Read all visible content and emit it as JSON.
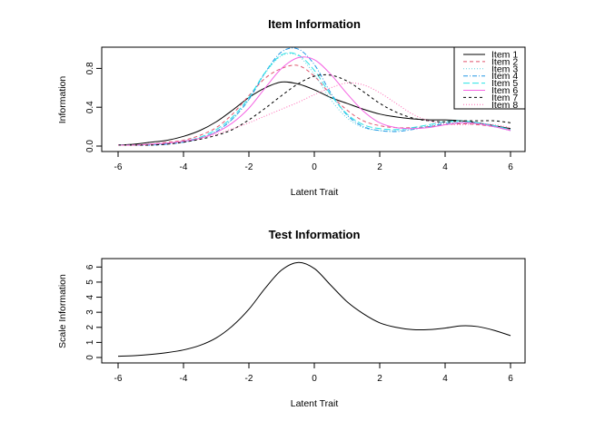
{
  "chart_data": [
    {
      "type": "line",
      "title": "Item Information",
      "xlabel": "Latent Trait",
      "ylabel": "Information",
      "xlim": [
        -6,
        6
      ],
      "ylim": [
        0,
        1.0
      ],
      "xticks": [
        "-6",
        "-4",
        "-2",
        "0",
        "2",
        "4",
        "6"
      ],
      "yticks": [
        "0.0",
        "0.4",
        "0.8"
      ],
      "legend_position": "top-right",
      "x": [
        -6,
        -5.5,
        -5,
        -4.5,
        -4,
        -3.5,
        -3,
        -2.5,
        -2,
        -1.5,
        -1,
        -0.5,
        0,
        0.5,
        1,
        1.5,
        2,
        2.5,
        3,
        3.5,
        4,
        4.5,
        5,
        5.5,
        6
      ],
      "series": [
        {
          "name": "Item 1",
          "color": "#000000",
          "dash": "solid",
          "values": [
            0.01,
            0.02,
            0.04,
            0.06,
            0.1,
            0.16,
            0.25,
            0.37,
            0.5,
            0.6,
            0.66,
            0.64,
            0.58,
            0.5,
            0.44,
            0.38,
            0.33,
            0.3,
            0.28,
            0.27,
            0.27,
            0.26,
            0.24,
            0.21,
            0.18
          ]
        },
        {
          "name": "Item 2",
          "color": "#df536b",
          "dash": "4,3",
          "values": [
            0.01,
            0.01,
            0.02,
            0.04,
            0.06,
            0.11,
            0.19,
            0.33,
            0.52,
            0.7,
            0.8,
            0.83,
            0.72,
            0.53,
            0.37,
            0.26,
            0.21,
            0.19,
            0.19,
            0.2,
            0.22,
            0.23,
            0.22,
            0.2,
            0.17
          ]
        },
        {
          "name": "Item 3",
          "color": "#5fd3e0",
          "dash": "1,2",
          "values": [
            0.01,
            0.01,
            0.01,
            0.02,
            0.04,
            0.08,
            0.15,
            0.28,
            0.48,
            0.75,
            0.93,
            0.93,
            0.74,
            0.48,
            0.29,
            0.19,
            0.16,
            0.16,
            0.18,
            0.21,
            0.24,
            0.25,
            0.24,
            0.21,
            0.17
          ]
        },
        {
          "name": "Item 4",
          "color": "#2297e6",
          "dash": "5,2,1,2",
          "values": [
            0.01,
            0.01,
            0.01,
            0.02,
            0.04,
            0.08,
            0.15,
            0.28,
            0.48,
            0.76,
            0.97,
            1.0,
            0.84,
            0.55,
            0.32,
            0.2,
            0.16,
            0.15,
            0.17,
            0.2,
            0.23,
            0.24,
            0.23,
            0.2,
            0.16
          ]
        },
        {
          "name": "Item 5",
          "color": "#28e2e5",
          "dash": "7,3",
          "values": [
            0.01,
            0.01,
            0.02,
            0.03,
            0.05,
            0.09,
            0.17,
            0.3,
            0.5,
            0.76,
            0.94,
            0.94,
            0.78,
            0.53,
            0.33,
            0.22,
            0.18,
            0.17,
            0.19,
            0.22,
            0.25,
            0.26,
            0.24,
            0.21,
            0.17
          ]
        },
        {
          "name": "Item 6",
          "color": "#f564e3",
          "dash": "solid",
          "values": [
            0.01,
            0.01,
            0.02,
            0.03,
            0.05,
            0.08,
            0.14,
            0.24,
            0.39,
            0.6,
            0.8,
            0.91,
            0.89,
            0.74,
            0.54,
            0.36,
            0.24,
            0.19,
            0.18,
            0.19,
            0.22,
            0.24,
            0.23,
            0.2,
            0.16
          ]
        },
        {
          "name": "Item 7",
          "color": "#000000",
          "dash": "3,3",
          "values": [
            0.01,
            0.01,
            0.01,
            0.02,
            0.04,
            0.07,
            0.11,
            0.17,
            0.27,
            0.39,
            0.52,
            0.64,
            0.72,
            0.73,
            0.67,
            0.56,
            0.44,
            0.35,
            0.29,
            0.26,
            0.25,
            0.26,
            0.26,
            0.26,
            0.24
          ]
        },
        {
          "name": "Item 8",
          "color": "#ff69b4",
          "dash": "1,2",
          "values": [
            0.01,
            0.01,
            0.02,
            0.03,
            0.05,
            0.08,
            0.12,
            0.18,
            0.24,
            0.31,
            0.38,
            0.45,
            0.53,
            0.6,
            0.65,
            0.63,
            0.55,
            0.44,
            0.33,
            0.26,
            0.23,
            0.22,
            0.23,
            0.22,
            0.19
          ]
        }
      ]
    },
    {
      "type": "line",
      "title": "Test Information",
      "xlabel": "Latent Trait",
      "ylabel": "Scale Information",
      "xlim": [
        -6,
        6
      ],
      "ylim": [
        0,
        6.5
      ],
      "xticks": [
        "-6",
        "-4",
        "-2",
        "0",
        "2",
        "4",
        "6"
      ],
      "yticks": [
        "0",
        "1",
        "2",
        "3",
        "4",
        "5",
        "6"
      ],
      "x": [
        -6,
        -5.5,
        -5,
        -4.5,
        -4,
        -3.5,
        -3,
        -2.5,
        -2,
        -1.5,
        -1,
        -0.5,
        0,
        0.5,
        1,
        1.5,
        2,
        2.5,
        3,
        3.5,
        4,
        4.5,
        5,
        5.5,
        6
      ],
      "series": [
        {
          "color": "#000000",
          "dash": "solid",
          "values": [
            0.08,
            0.12,
            0.2,
            0.32,
            0.5,
            0.8,
            1.3,
            2.1,
            3.2,
            4.6,
            5.8,
            6.3,
            5.9,
            4.8,
            3.7,
            2.9,
            2.3,
            2.0,
            1.85,
            1.85,
            1.95,
            2.1,
            2.05,
            1.8,
            1.45
          ]
        }
      ]
    }
  ]
}
